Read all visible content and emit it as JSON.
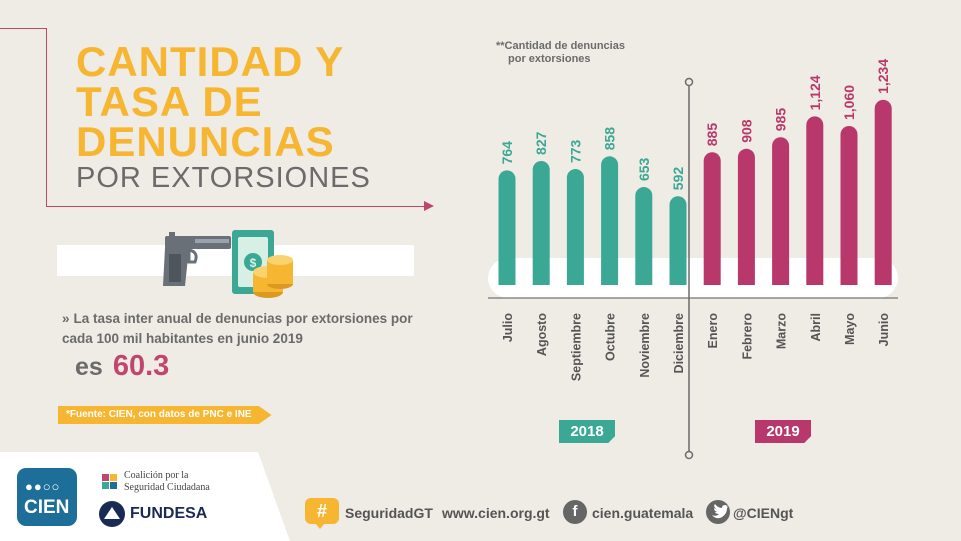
{
  "title": {
    "line1": "CANTIDAD Y",
    "line2": "TASA DE",
    "line3": "DENUNCIAS",
    "subtitle": "POR EXTORSIONES"
  },
  "rate": {
    "bullet": "»",
    "text": "La tasa inter anual de denuncias por extorsiones por cada 100 mil habitantes en junio 2019",
    "prefix": "es",
    "value": "60.3"
  },
  "source": "*Fuente: CIEN, con datos de PNC e INE",
  "chart_note": {
    "line1": "**Cantidad de denuncias",
    "line2": "por extorsiones"
  },
  "colors": {
    "accent_yellow": "#f6b631",
    "teal_2018": "#3ba895",
    "magenta_2019": "#b8386b",
    "text_gray": "#6b6b6b",
    "background": "#efebe5"
  },
  "chart_data": {
    "type": "bar",
    "title": "**Cantidad de denuncias por extorsiones",
    "xlabel": "",
    "ylabel": "",
    "categories": [
      "Julio",
      "Agosto",
      "Septiembre",
      "Octubre",
      "Noviembre",
      "Diciembre",
      "Enero",
      "Febrero",
      "Marzo",
      "Abril",
      "Mayo",
      "Junio"
    ],
    "values": [
      764,
      827,
      773,
      858,
      653,
      592,
      885,
      908,
      985,
      1124,
      1060,
      1234
    ],
    "value_labels": [
      "764",
      "827",
      "773",
      "858",
      "653",
      "592",
      "885",
      "908",
      "985",
      "1,124",
      "1,060",
      "1,234"
    ],
    "groups": [
      {
        "name": "2018",
        "start": 0,
        "end": 5,
        "color": "#3ba895"
      },
      {
        "name": "2019",
        "start": 6,
        "end": 11,
        "color": "#b8386b"
      }
    ],
    "ylim": [
      0,
      1300
    ],
    "grid": false,
    "legend": "none"
  },
  "footer": {
    "cien_logo_text": "CIEN",
    "coalicion_text_1": "Coalición por la",
    "coalicion_text_2": "Seguridad Ciudadana",
    "fundesa_text": "FUNDESA",
    "hashtag_symbol": "#",
    "hashtag": "SeguridadGT",
    "website": "www.cien.org.gt",
    "facebook_icon_glyph": "f",
    "facebook": "cien.guatemala",
    "twitter": "@CIENgt"
  },
  "icons": {
    "gun": "gun-icon",
    "money": "money-icon",
    "coins": "coins-icon",
    "facebook": "facebook-icon",
    "twitter": "twitter-icon",
    "hashtag": "hashtag-icon"
  }
}
